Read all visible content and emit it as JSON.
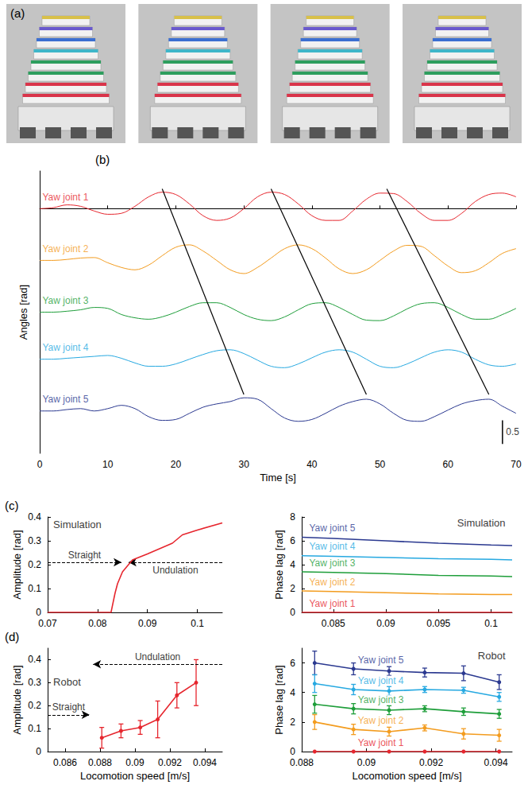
{
  "photos": {
    "panel": "(a)",
    "count": 4
  },
  "chart_data": [
    {
      "type": "line",
      "panel": "(b)",
      "x_label": "Time [s]",
      "y_label": "Angles [rad]",
      "grid": false,
      "tick_labels": "x",
      "marker": "none",
      "xlim": [
        0,
        70
      ],
      "xticks": [
        0,
        10,
        20,
        30,
        40,
        50,
        60,
        70
      ],
      "ylim": [
        -5.2,
        0.8
      ],
      "yticks": [],
      "x": [
        0,
        2,
        4,
        6,
        8,
        10,
        12,
        14,
        16,
        18,
        20,
        22,
        24,
        26,
        28,
        30,
        32,
        34,
        36,
        38,
        40,
        42,
        44,
        46,
        48,
        50,
        52,
        54,
        56,
        58,
        60,
        62,
        64,
        66,
        68,
        70
      ],
      "series": [
        {
          "name": "Yaw joint 1",
          "color": "#e6262e",
          "values": [
            0,
            0.02,
            0.08,
            0.05,
            -0.05,
            -0.12,
            -0.1,
            0.05,
            0.25,
            0.35,
            0.3,
            0.1,
            -0.15,
            -0.25,
            -0.2,
            0,
            0.25,
            0.35,
            0.3,
            0.1,
            -0.15,
            -0.25,
            -0.25,
            -0.05,
            0.2,
            0.33,
            0.32,
            0.15,
            -0.1,
            -0.25,
            -0.25,
            -0.1,
            0.15,
            0.3,
            0.33,
            0.25
          ]
        },
        {
          "name": "Yaw joint 2",
          "color": "#f39c1f",
          "values": [
            -1.1,
            -1.1,
            -1.08,
            -1.05,
            -1.04,
            -1.15,
            -1.25,
            -1.3,
            -1.2,
            -1.0,
            -0.82,
            -0.77,
            -0.9,
            -1.1,
            -1.3,
            -1.38,
            -1.25,
            -1.05,
            -0.85,
            -0.77,
            -0.85,
            -1.05,
            -1.28,
            -1.38,
            -1.3,
            -1.1,
            -0.9,
            -0.78,
            -0.8,
            -1.0,
            -1.22,
            -1.36,
            -1.32,
            -1.15,
            -0.95,
            -0.85
          ]
        },
        {
          "name": "Yaw joint 3",
          "color": "#1e9e3a",
          "values": [
            -2.2,
            -2.2,
            -2.18,
            -2.15,
            -2.1,
            -2.12,
            -2.25,
            -2.32,
            -2.35,
            -2.3,
            -2.2,
            -2.08,
            -2.0,
            -2.0,
            -2.1,
            -2.25,
            -2.35,
            -2.38,
            -2.3,
            -2.15,
            -2.02,
            -2.0,
            -2.1,
            -2.25,
            -2.37,
            -2.38,
            -2.28,
            -2.13,
            -2.02,
            -2.0,
            -2.1,
            -2.25,
            -2.35,
            -2.35,
            -2.25,
            -2.12
          ]
        },
        {
          "name": "Yaw joint 4",
          "color": "#27a9e1",
          "values": [
            -3.2,
            -3.2,
            -3.18,
            -3.16,
            -3.14,
            -3.12,
            -3.18,
            -3.28,
            -3.35,
            -3.35,
            -3.3,
            -3.2,
            -3.1,
            -3.02,
            -3.0,
            -3.08,
            -3.22,
            -3.35,
            -3.38,
            -3.3,
            -3.17,
            -3.05,
            -3.0,
            -3.05,
            -3.2,
            -3.35,
            -3.38,
            -3.3,
            -3.17,
            -3.05,
            -3.0,
            -3.05,
            -3.2,
            -3.32,
            -3.35,
            -3.3
          ]
        },
        {
          "name": "Yaw joint 5",
          "color": "#2b3990",
          "values": [
            -4.3,
            -4.3,
            -4.27,
            -4.25,
            -4.3,
            -4.25,
            -4.18,
            -4.25,
            -4.42,
            -4.5,
            -4.48,
            -4.35,
            -4.22,
            -4.15,
            -4.1,
            -4.02,
            -4.05,
            -4.25,
            -4.45,
            -4.52,
            -4.48,
            -4.35,
            -4.2,
            -4.1,
            -4.05,
            -4.15,
            -4.35,
            -4.5,
            -4.52,
            -4.42,
            -4.28,
            -4.15,
            -4.08,
            -4.05,
            -4.2,
            -4.35
          ]
        }
      ],
      "phase_lines": [
        {
          "x": [
            18,
            30
          ],
          "y": [
            0.42,
            -3.95
          ]
        },
        {
          "x": [
            34,
            48
          ],
          "y": [
            0.42,
            -3.95
          ]
        },
        {
          "x": [
            51,
            66
          ],
          "y": [
            0.42,
            -3.95
          ]
        }
      ],
      "scale_bar": {
        "x": 68,
        "y0": -5.0,
        "length": 0.5
      }
    },
    {
      "type": "line",
      "panel": "(c)",
      "annotation": "Simulation",
      "y_label": "Amplitude [rad]",
      "grid": false,
      "marker": "none",
      "color": "#e6262e",
      "xlim": [
        0.07,
        0.105
      ],
      "xticks": [
        0.07,
        0.08,
        0.09,
        0.1
      ],
      "ylim": [
        0,
        0.4
      ],
      "yticks": [
        0,
        0.1,
        0.2,
        0.3,
        0.4
      ],
      "x": [
        0.07,
        0.075,
        0.08,
        0.0827,
        0.0835,
        0.084,
        0.085,
        0.087,
        0.09,
        0.095,
        0.097,
        0.1,
        0.105
      ],
      "values": [
        0,
        0,
        0,
        0,
        0.08,
        0.12,
        0.17,
        0.22,
        0.245,
        0.29,
        0.325,
        0.345,
        0.375
      ],
      "arrows": [
        {
          "label": "Straight",
          "y": 0.21,
          "x": [
            0.07,
            0.0848
          ]
        },
        {
          "label": "Undulation",
          "y": 0.21,
          "x": [
            0.105,
            0.0862
          ]
        }
      ]
    },
    {
      "type": "line",
      "annotation": "Simulation",
      "y_label": "Phase lag [rad]",
      "grid": false,
      "marker": "none",
      "xlim": [
        0.082,
        0.102
      ],
      "xticks": [
        0.085,
        0.09,
        0.095,
        0.1
      ],
      "ylim": [
        0,
        8
      ],
      "yticks": [
        0,
        2,
        4,
        6,
        8
      ],
      "x": [
        0.082,
        0.085,
        0.09,
        0.095,
        0.1,
        0.102
      ],
      "series": [
        {
          "name": "Yaw joint 5",
          "color": "#2b3990",
          "values": [
            6.3,
            6.2,
            6.0,
            5.8,
            5.65,
            5.6
          ]
        },
        {
          "name": "Yaw joint 4",
          "color": "#27a9e1",
          "values": [
            4.75,
            4.7,
            4.6,
            4.5,
            4.45,
            4.4
          ]
        },
        {
          "name": "Yaw joint 3",
          "color": "#1e9e3a",
          "values": [
            3.4,
            3.35,
            3.25,
            3.1,
            3.05,
            3.0
          ]
        },
        {
          "name": "Yaw joint 2",
          "color": "#f39c1f",
          "values": [
            1.8,
            1.75,
            1.65,
            1.55,
            1.5,
            1.5
          ]
        },
        {
          "name": "Yaw joint 1",
          "color": "#e6262e",
          "values": [
            0,
            0,
            0,
            0,
            0,
            0
          ]
        }
      ]
    },
    {
      "type": "line",
      "panel": "(d)",
      "annotation": "Robot",
      "x_label": "Locomotion speed [m/s]",
      "y_label": "Amplitude [rad]",
      "grid": false,
      "marker": "circle",
      "color": "#e6262e",
      "xlim": [
        0.085,
        0.095
      ],
      "xticks": [
        0.086,
        0.088,
        0.09,
        0.092,
        0.094
      ],
      "ylim": [
        0,
        0.45
      ],
      "yticks": [
        0,
        0.1,
        0.2,
        0.3,
        0.4
      ],
      "x": [
        0.0881,
        0.0892,
        0.0903,
        0.0913,
        0.0924,
        0.0935
      ],
      "values": [
        0.06,
        0.09,
        0.105,
        0.14,
        0.245,
        0.3
      ],
      "errors": [
        0.045,
        0.03,
        0.03,
        0.08,
        0.055,
        0.1
      ],
      "arrows": [
        {
          "label": "Undulation",
          "y": 0.38,
          "x": [
            0.095,
            0.0876
          ]
        },
        {
          "label": "Straight",
          "y": 0.16,
          "x": [
            0.085,
            0.0874
          ]
        }
      ]
    },
    {
      "type": "line",
      "annotation": "Robot",
      "x_label": "Locomotion speed [m/s]",
      "y_label": "Phase lag [rad]",
      "grid": false,
      "marker": "circle",
      "xlim": [
        0.088,
        0.0945
      ],
      "xticks": [
        0.088,
        0.09,
        0.092,
        0.094
      ],
      "ylim": [
        0,
        7
      ],
      "yticks": [
        0,
        2,
        4,
        6
      ],
      "x": [
        0.0884,
        0.0896,
        0.0907,
        0.0918,
        0.093,
        0.0941
      ],
      "series": [
        {
          "name": "Yaw joint 5",
          "color": "#2b3990",
          "values": [
            6.0,
            5.6,
            5.45,
            5.35,
            5.3,
            4.7
          ],
          "errors": [
            0.8,
            0.4,
            0.3,
            0.3,
            0.5,
            0.5
          ]
        },
        {
          "name": "Yaw joint 4",
          "color": "#27a9e1",
          "values": [
            4.6,
            4.2,
            4.1,
            4.2,
            4.15,
            3.7
          ],
          "errors": [
            0.6,
            0.35,
            0.3,
            0.2,
            0.2,
            0.3
          ]
        },
        {
          "name": "Yaw joint 3",
          "color": "#1e9e3a",
          "values": [
            3.2,
            2.9,
            2.8,
            2.9,
            2.7,
            2.55
          ],
          "errors": [
            0.6,
            0.35,
            0.3,
            0.2,
            0.25,
            0.3
          ]
        },
        {
          "name": "Yaw joint 2",
          "color": "#f39c1f",
          "values": [
            2.0,
            1.5,
            1.35,
            1.6,
            1.2,
            1.1
          ],
          "errors": [
            0.5,
            0.35,
            0.3,
            0.2,
            0.35,
            0.4
          ]
        },
        {
          "name": "Yaw joint 1",
          "color": "#e6262e",
          "values": [
            0,
            0,
            0,
            0,
            0,
            0
          ],
          "errors": [
            0,
            0,
            0,
            0,
            0,
            0
          ]
        }
      ]
    }
  ]
}
